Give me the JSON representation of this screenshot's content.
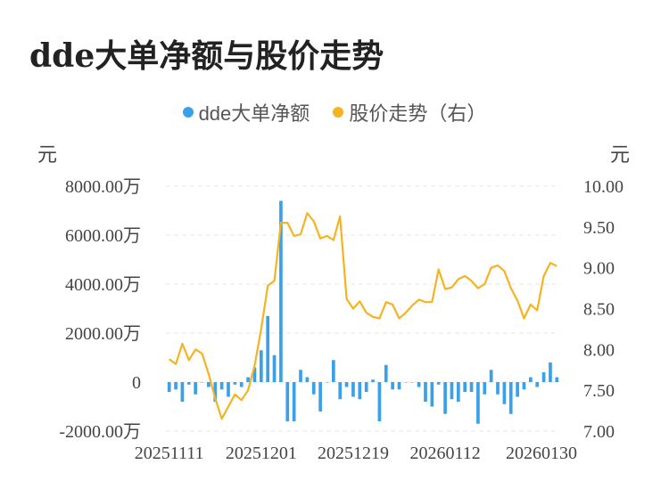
{
  "title": "dde大单净额与股价走势",
  "chart_data": {
    "type": "bar+line",
    "legend": [
      {
        "name": "dde大单净额",
        "color": "#3aa0e8"
      },
      {
        "name": "股价走势（右）",
        "color": "#f5b321"
      }
    ],
    "legend_position": "top-center",
    "grid": true,
    "left_axis": {
      "unit": "元",
      "range": [
        -2000,
        8000
      ],
      "ticks": [
        -2000,
        0,
        2000,
        4000,
        6000,
        8000
      ],
      "tick_labels": [
        "-2000.00万",
        "0",
        "2000.00万",
        "4000.00万",
        "6000.00万",
        "8000.00万"
      ]
    },
    "right_axis": {
      "unit": "元",
      "range": [
        7.0,
        10.0
      ],
      "ticks": [
        7.0,
        7.5,
        8.0,
        8.5,
        9.0,
        9.5,
        10.0
      ],
      "tick_labels": [
        "7.00",
        "7.50",
        "8.00",
        "8.50",
        "9.00",
        "9.50",
        "10.00"
      ]
    },
    "x_tick_labels": [
      "20251111",
      "20251201",
      "20251219",
      "20260112",
      "20260130"
    ],
    "x_tick_indices": [
      0,
      14,
      28,
      42,
      56
    ],
    "dde_net": [
      -400,
      -300,
      -800,
      -100,
      -500,
      0,
      -200,
      -800,
      -300,
      -600,
      -100,
      -200,
      200,
      600,
      1300,
      2700,
      1100,
      7400,
      -1600,
      -1600,
      500,
      200,
      -500,
      -1200,
      0,
      900,
      -700,
      -200,
      -600,
      -700,
      -400,
      100,
      -1600,
      700,
      -300,
      -300,
      0,
      0,
      -200,
      -800,
      -1000,
      -100,
      -1300,
      -700,
      -800,
      -400,
      -400,
      -1700,
      -500,
      500,
      -500,
      -900,
      -1300,
      -600,
      -300,
      200,
      -200,
      400,
      800,
      200
    ],
    "price": [
      7.88,
      7.82,
      8.07,
      7.87,
      8.0,
      7.95,
      7.7,
      7.4,
      7.15,
      7.3,
      7.45,
      7.38,
      7.5,
      7.8,
      8.25,
      8.78,
      8.84,
      9.55,
      9.55,
      9.39,
      9.41,
      9.67,
      9.57,
      9.36,
      9.39,
      9.34,
      9.63,
      8.62,
      8.5,
      8.59,
      8.45,
      8.4,
      8.38,
      8.58,
      8.55,
      8.38,
      8.45,
      8.54,
      8.61,
      8.58,
      8.58,
      8.98,
      8.74,
      8.76,
      8.86,
      8.9,
      8.84,
      8.75,
      8.8,
      9.0,
      9.03,
      8.96,
      8.75,
      8.6,
      8.38,
      8.55,
      8.48,
      8.9,
      9.06,
      9.02
    ]
  }
}
